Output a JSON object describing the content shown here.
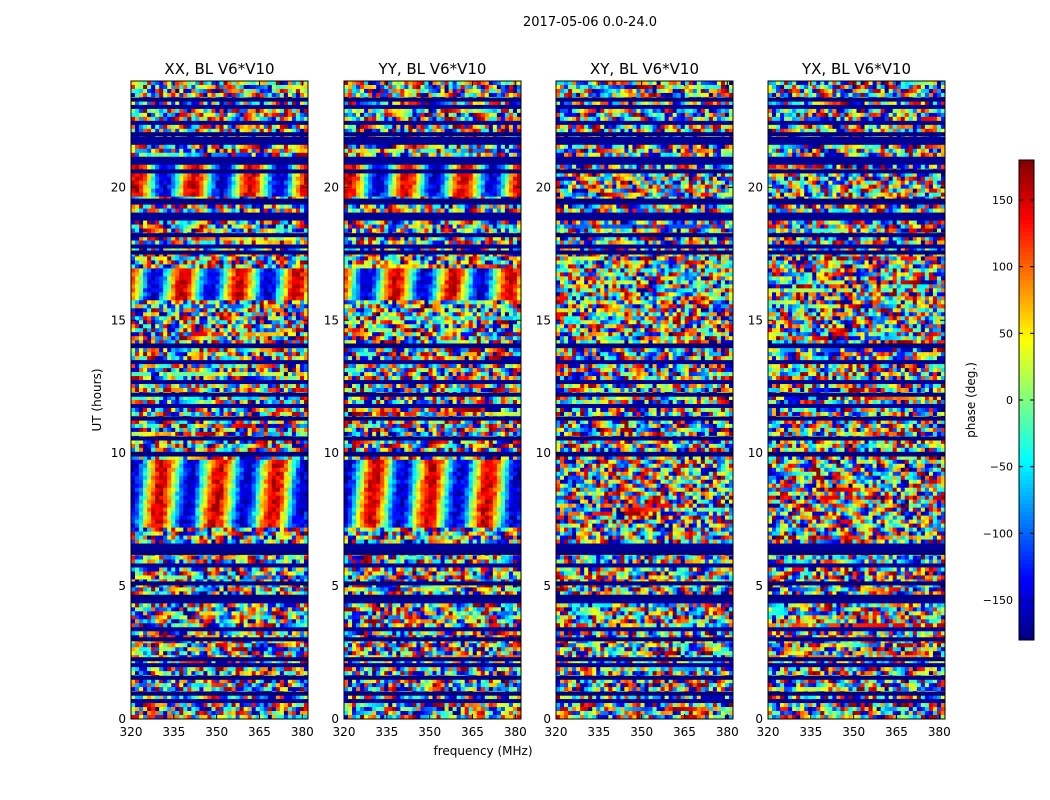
{
  "chart_data": {
    "type": "heatmap",
    "suptitle": "2017-05-06 0.0-24.0",
    "xlabel": "frequency (MHz)",
    "ylabel": "UT (hours)",
    "xlim": [
      320,
      382
    ],
    "ylim": [
      0,
      24
    ],
    "x_ticks": [
      320,
      335,
      350,
      365,
      380
    ],
    "y_ticks": [
      0,
      5,
      10,
      15,
      20
    ],
    "panels": [
      {
        "title": "XX, BL V6*V10",
        "pol": "XX"
      },
      {
        "title": "YY, BL V6*V10",
        "pol": "YY"
      },
      {
        "title": "XY, BL V6*V10",
        "pol": "XY"
      },
      {
        "title": "YX, BL V6*V10",
        "pol": "YX"
      }
    ],
    "colorbar": {
      "label": "phase (deg.)",
      "range": [
        -180,
        180
      ],
      "ticks": [
        -150,
        -100,
        -50,
        0,
        50,
        100,
        150
      ],
      "tick_labels": [
        "−150",
        "−100",
        "−50",
        "0",
        "50",
        "100",
        "150"
      ],
      "colormap": "jet"
    },
    "flagged_rows_hours": [
      0.95,
      1.55,
      2.25,
      3.0,
      4.6,
      5.1,
      6.25,
      9.95,
      10.55,
      11.3,
      12.2,
      14.05,
      17.55,
      18.2,
      19.5,
      20.6,
      22.0,
      23.3
    ]
  }
}
